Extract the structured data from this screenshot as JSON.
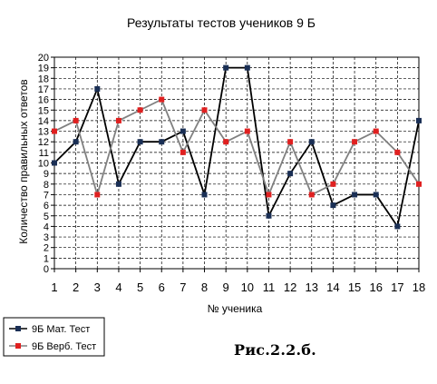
{
  "figure_caption": "Рис.2.2.б.",
  "colors": {
    "series1": "#000000",
    "series1_marker": "#1a2f55",
    "series2": "#808080",
    "series2_marker": "#e02020",
    "grid": "#000000"
  },
  "chart_data": {
    "type": "line",
    "title": "Результаты тестов учеников 9 Б",
    "xlabel": "№ ученика",
    "ylabel": "Количество правильных ответов",
    "x": [
      1,
      2,
      3,
      4,
      5,
      6,
      7,
      8,
      9,
      10,
      11,
      12,
      13,
      14,
      15,
      16,
      17,
      18
    ],
    "ylim": [
      0,
      20
    ],
    "yticks": [
      0,
      1,
      2,
      3,
      4,
      5,
      6,
      7,
      8,
      9,
      10,
      11,
      12,
      13,
      14,
      15,
      16,
      17,
      18,
      19,
      20
    ],
    "grid": true,
    "legend_position": "bottom-left",
    "series": [
      {
        "name": "9Б Мат. Тест",
        "values": [
          10,
          12,
          17,
          8,
          12,
          12,
          13,
          7,
          19,
          19,
          5,
          9,
          12,
          6,
          7,
          7,
          4,
          14
        ]
      },
      {
        "name": "9Б Верб. Тест",
        "values": [
          13,
          14,
          7,
          14,
          15,
          16,
          11,
          15,
          12,
          13,
          7,
          12,
          7,
          8,
          12,
          13,
          11,
          8
        ]
      }
    ]
  }
}
